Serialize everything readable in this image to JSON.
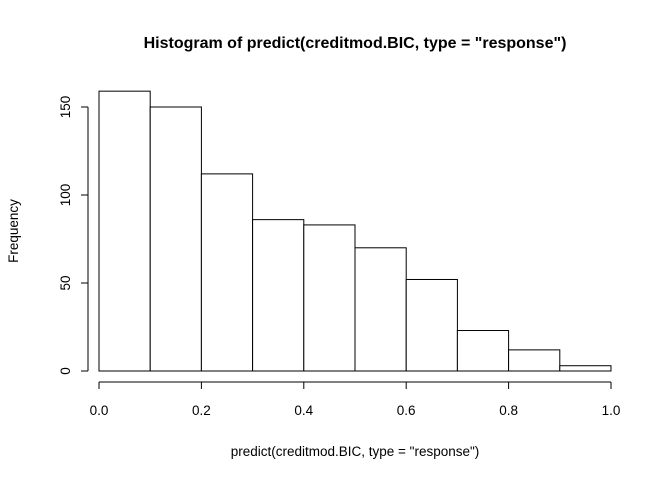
{
  "chart_data": {
    "type": "bar",
    "title": "Histogram of predict(creditmod.BIC, type = \"response\")",
    "xlabel": "predict(creditmod.BIC, type = \"response\")",
    "ylabel": "Frequency",
    "xlim": [
      0,
      1
    ],
    "ylim": [
      0,
      159
    ],
    "bins": [
      {
        "x0": 0.0,
        "x1": 0.1,
        "count": 159
      },
      {
        "x0": 0.1,
        "x1": 0.2,
        "count": 150
      },
      {
        "x0": 0.2,
        "x1": 0.3,
        "count": 112
      },
      {
        "x0": 0.3,
        "x1": 0.4,
        "count": 86
      },
      {
        "x0": 0.4,
        "x1": 0.5,
        "count": 83
      },
      {
        "x0": 0.5,
        "x1": 0.6,
        "count": 70
      },
      {
        "x0": 0.6,
        "x1": 0.7,
        "count": 52
      },
      {
        "x0": 0.7,
        "x1": 0.8,
        "count": 23
      },
      {
        "x0": 0.8,
        "x1": 0.9,
        "count": 12
      },
      {
        "x0": 0.9,
        "x1": 1.0,
        "count": 3
      }
    ],
    "x_ticks": [
      {
        "value": 0.0,
        "label": "0.0"
      },
      {
        "value": 0.2,
        "label": "0.2"
      },
      {
        "value": 0.4,
        "label": "0.4"
      },
      {
        "value": 0.6,
        "label": "0.6"
      },
      {
        "value": 0.8,
        "label": "0.8"
      },
      {
        "value": 1.0,
        "label": "1.0"
      }
    ],
    "y_ticks": [
      {
        "value": 0,
        "label": "0"
      },
      {
        "value": 50,
        "label": "50"
      },
      {
        "value": 100,
        "label": "100"
      },
      {
        "value": 150,
        "label": "150"
      }
    ],
    "grid": false,
    "bar_fill": "#ffffff",
    "bar_stroke": "#000000"
  }
}
